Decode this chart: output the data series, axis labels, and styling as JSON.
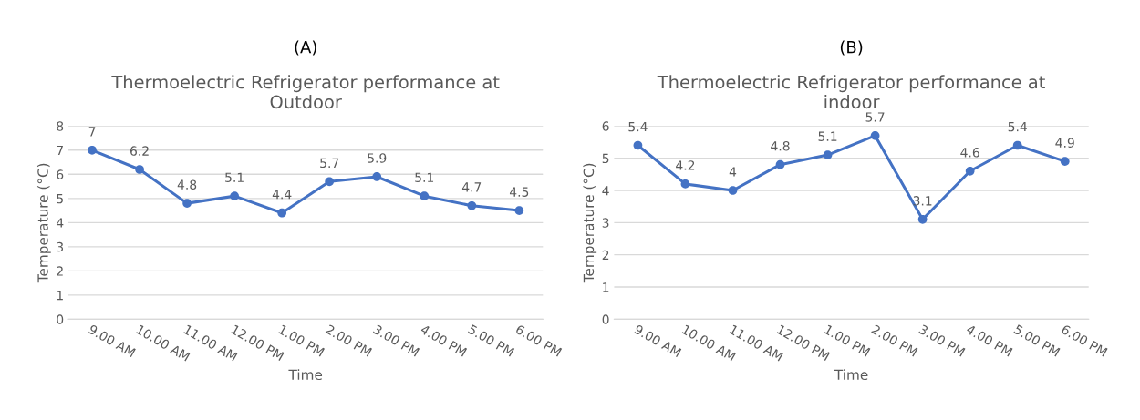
{
  "chart_data": [
    {
      "type": "line",
      "annotations": [
        "(A)"
      ],
      "title": "Thermoelectric Refrigerator performance at\nOutdoor",
      "xlabel": "Time",
      "ylabel": "Temperature (°C)",
      "categories": [
        "9.00 AM",
        "10.00 AM",
        "11.00 AM",
        "12.00 PM",
        "1.00 PM",
        "2.00 PM",
        "3.00 PM",
        "4.00 PM",
        "5.00 PM",
        "6.00 PM"
      ],
      "series": [
        {
          "color": "#4472c4",
          "values": [
            7,
            6.2,
            4.8,
            5.1,
            4.4,
            5.7,
            5.9,
            5.1,
            4.7,
            4.5
          ]
        }
      ],
      "ylim": [
        0,
        8
      ],
      "yticks": [
        0,
        1,
        2,
        3,
        4,
        5,
        6,
        7,
        8
      ],
      "grid": "y",
      "marker": "circle",
      "line_style": "solid",
      "data_labels": true
    },
    {
      "type": "line",
      "annotations": [
        "(B)"
      ],
      "title": "Thermoelectric Refrigerator performance at\nindoor",
      "xlabel": "Time",
      "ylabel": "Temperature (°C)",
      "categories": [
        "9.00 AM",
        "10.00 AM",
        "11.00 AM",
        "12.00 PM",
        "1.00 PM",
        "2.00 PM",
        "3.00 PM",
        "4.00 PM",
        "5.00 PM",
        "6.00 PM"
      ],
      "series": [
        {
          "color": "#4472c4",
          "values": [
            5.4,
            4.2,
            4,
            4.8,
            5.1,
            5.7,
            3.1,
            4.6,
            5.4,
            4.9
          ]
        }
      ],
      "ylim": [
        0,
        6
      ],
      "yticks": [
        0,
        1,
        2,
        3,
        4,
        5,
        6
      ],
      "grid": "y",
      "marker": "circle",
      "line_style": "solid",
      "data_labels": true
    }
  ]
}
